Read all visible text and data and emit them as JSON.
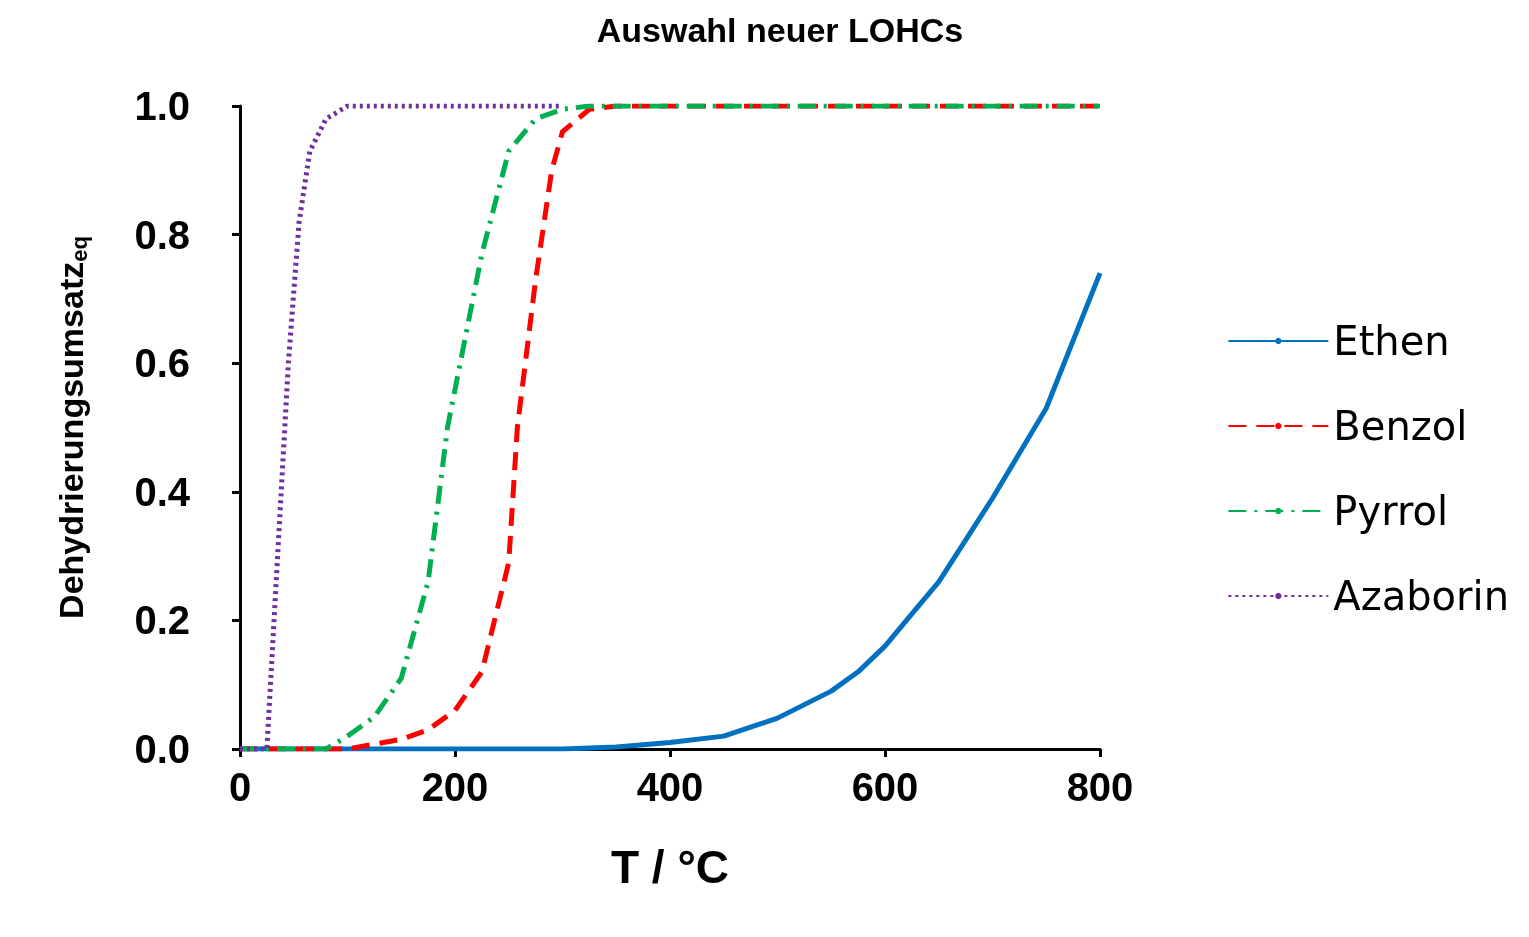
{
  "chart_data": {
    "type": "line",
    "title": "Auswahl neuer LOHCs",
    "xlabel": "T / °C",
    "ylabel": "Dehydrierungsumsatz$_{eq}$",
    "xlim": [
      0,
      800
    ],
    "xticks": [
      0,
      200,
      400,
      600,
      800
    ],
    "ylim": [
      0,
      1
    ],
    "yticks": [
      {
        "value": 0,
        "label": "0.0"
      },
      {
        "value": 0.2,
        "label": "0.2"
      },
      {
        "value": 0.4,
        "label": "0.4"
      },
      {
        "value": 0.6,
        "label": "0.6"
      },
      {
        "value": 0.8,
        "label": "0.8"
      },
      {
        "value": 1,
        "label": "1.0"
      }
    ],
    "grid": false,
    "legend": "right",
    "marker": "none",
    "series": [
      {
        "name": "Ethen",
        "color": "#0070c0",
        "line_style": "solid",
        "x": [
          0,
          300,
          350,
          400,
          450,
          500,
          550,
          575,
          600,
          625,
          650,
          675,
          700,
          725,
          750,
          775,
          800
        ],
        "values": [
          0,
          0,
          0.003,
          0.01,
          0.02,
          0.048,
          0.09,
          0.12,
          0.16,
          0.21,
          0.26,
          0.325,
          0.39,
          0.46,
          0.53,
          0.635,
          0.74
        ]
      },
      {
        "name": "Benzol",
        "color": "#ff0000",
        "line_style": "dashed",
        "x": [
          0,
          100,
          150,
          175,
          200,
          225,
          250,
          258,
          275,
          290,
          300,
          325,
          350,
          800
        ],
        "values": [
          0,
          0,
          0.015,
          0.03,
          0.06,
          0.12,
          0.29,
          0.5,
          0.73,
          0.9,
          0.96,
          0.995,
          1,
          1
        ]
      },
      {
        "name": "Pyrrol",
        "color": "#00b050",
        "line_style": "dashdot",
        "x": [
          0,
          80,
          100,
          125,
          150,
          175,
          193,
          225,
          250,
          275,
          300,
          325,
          800
        ],
        "values": [
          0,
          0,
          0.02,
          0.05,
          0.11,
          0.26,
          0.5,
          0.77,
          0.93,
          0.98,
          0.995,
          1,
          1
        ]
      },
      {
        "name": "Azaborin",
        "color": "#7030a0",
        "line_style": "dotted",
        "x": [
          0,
          25,
          35,
          45,
          55,
          65,
          80,
          100,
          300
        ],
        "values": [
          0,
          0,
          0.3,
          0.6,
          0.82,
          0.93,
          0.98,
          1,
          1
        ]
      }
    ]
  }
}
